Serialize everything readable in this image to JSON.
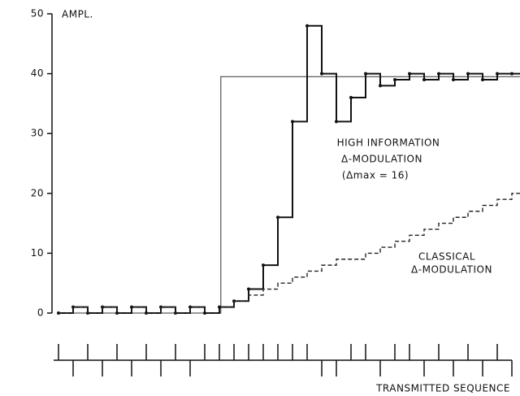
{
  "chart_data": {
    "type": "step",
    "y_label": "AMPL.",
    "x_label": "TRANSMITTED SEQUENCE",
    "ylim": [
      0,
      50
    ],
    "yticks": [
      0,
      10,
      20,
      30,
      40,
      50
    ],
    "xlim": [
      0,
      31.9
    ],
    "input": {
      "x": [
        0,
        11.1,
        11.1,
        31.9
      ],
      "values": [
        0,
        0,
        39.5,
        39.5
      ],
      "color": "#333333"
    },
    "series": [
      {
        "name": "HIGH INFORMATION Δ-MODULATION",
        "color": "#111111",
        "values": [
          0,
          1,
          0,
          1,
          0,
          1,
          0,
          1,
          0,
          1,
          0,
          1,
          2,
          4,
          8,
          16,
          32,
          48,
          40,
          32,
          36,
          40,
          38,
          39,
          40,
          39,
          40,
          39,
          40,
          39,
          40,
          40
        ]
      },
      {
        "name": "CLASSICAL Δ-MODULATION",
        "color": "#222222",
        "dashed": true,
        "values": [
          0,
          1,
          0,
          1,
          0,
          1,
          0,
          1,
          0,
          1,
          0,
          1,
          2,
          3,
          4,
          5,
          6,
          7,
          8,
          9,
          9,
          10,
          11,
          12,
          13,
          14,
          15,
          16,
          17,
          18,
          19,
          20
        ]
      }
    ],
    "transmitted_sequence": [
      1,
      -1,
      1,
      -1,
      1,
      -1,
      1,
      -1,
      1,
      -1,
      1,
      1,
      1,
      1,
      1,
      1,
      1,
      1,
      -1,
      -1,
      1,
      1,
      -1,
      1,
      1,
      -1,
      1,
      -1,
      1,
      -1,
      1,
      -1
    ],
    "annotations": [
      "HIGH INFORMATION",
      "Δ-MODULATION",
      "(Δmax = 16)",
      "CLASSICAL",
      "Δ-MODULATION"
    ]
  }
}
